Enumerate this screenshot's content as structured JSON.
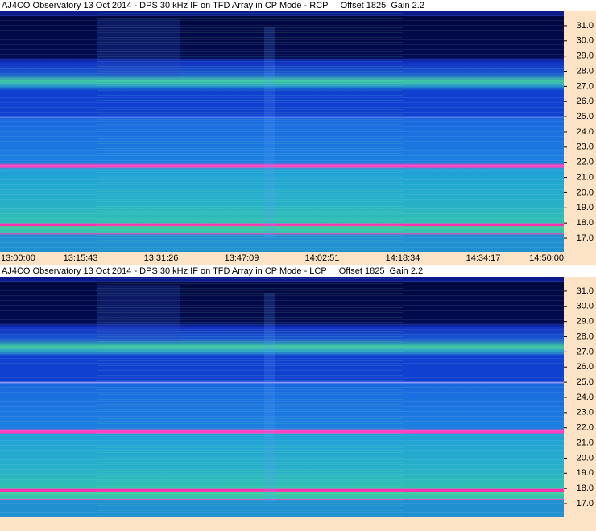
{
  "chart_data": [
    {
      "type": "spectrogram",
      "title": "AJ4CO Observatory 13 Oct 2014 - DPS 30 kHz IF on TFD Array in CP Mode - RCP     Offset 1825  Gain 2.2",
      "ylim": [
        16.1,
        31.95
      ],
      "yticks": [
        {
          "value": 17,
          "label": "17.0"
        },
        {
          "value": 18,
          "label": "18.0"
        },
        {
          "value": 19,
          "label": "19.0"
        },
        {
          "value": 20,
          "label": "20.0"
        },
        {
          "value": 21,
          "label": "21.0"
        },
        {
          "value": 22,
          "label": "22.0"
        },
        {
          "value": 23,
          "label": "23.0"
        },
        {
          "value": 24,
          "label": "24.0"
        },
        {
          "value": 25,
          "label": "25.0"
        },
        {
          "value": 26,
          "label": "26.0"
        },
        {
          "value": 27,
          "label": "27.0"
        },
        {
          "value": 28,
          "label": "28.0"
        },
        {
          "value": 29,
          "label": "29.0"
        },
        {
          "value": 30,
          "label": "30.0"
        },
        {
          "value": 31,
          "label": "31.0"
        }
      ],
      "x": [
        "13:00:00",
        "13:15:43",
        "13:31:26",
        "13:47:09",
        "14:02:51",
        "14:18:34",
        "14:34:17",
        "14:50:00"
      ]
    },
    {
      "type": "spectrogram",
      "title": "AJ4CO Observatory 13 Oct 2014 - DPS 30 kHz IF on TFD Array in CP Mode - LCP     Offset 1825  Gain 2.2",
      "ylim": [
        16.1,
        31.95
      ],
      "yticks": [
        {
          "value": 17,
          "label": "17.0"
        },
        {
          "value": 18,
          "label": "18.0"
        },
        {
          "value": 19,
          "label": "19.0"
        },
        {
          "value": 20,
          "label": "20.0"
        },
        {
          "value": 21,
          "label": "21.0"
        },
        {
          "value": 22,
          "label": "22.0"
        },
        {
          "value": 23,
          "label": "23.0"
        },
        {
          "value": 24,
          "label": "24.0"
        },
        {
          "value": 25,
          "label": "25.0"
        },
        {
          "value": 26,
          "label": "26.0"
        },
        {
          "value": 27,
          "label": "27.0"
        },
        {
          "value": 28,
          "label": "28.0"
        },
        {
          "value": 29,
          "label": "29.0"
        },
        {
          "value": 30,
          "label": "30.0"
        },
        {
          "value": 31,
          "label": "31.0"
        }
      ]
    }
  ]
}
